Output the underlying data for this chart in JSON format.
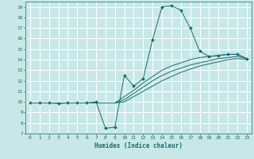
{
  "xlabel": "Humidex (Indice chaleur)",
  "bg_color": "#c8e8e8",
  "grid_color": "#a0d0d0",
  "line_color": "#1a6b6b",
  "xlim": [
    -0.5,
    23.5
  ],
  "ylim": [
    7,
    19.5
  ],
  "xticks": [
    0,
    1,
    2,
    3,
    4,
    5,
    6,
    7,
    8,
    9,
    10,
    11,
    12,
    13,
    14,
    15,
    16,
    17,
    18,
    19,
    20,
    21,
    22,
    23
  ],
  "yticks": [
    7,
    8,
    9,
    10,
    11,
    12,
    13,
    14,
    15,
    16,
    17,
    18,
    19
  ],
  "series": [
    {
      "x": [
        0,
        1,
        2,
        3,
        4,
        5,
        6,
        7,
        8,
        9,
        10,
        11,
        12,
        13,
        14,
        15,
        16,
        17,
        18,
        19,
        20,
        21,
        22,
        23
      ],
      "y": [
        9.9,
        9.9,
        9.9,
        9.85,
        9.9,
        9.9,
        9.9,
        10.0,
        7.5,
        7.6,
        12.5,
        11.5,
        12.2,
        15.9,
        19.0,
        19.1,
        18.7,
        17.0,
        14.8,
        14.3,
        14.4,
        14.5,
        14.5,
        14.1
      ],
      "marker": "D",
      "markersize": 2.0
    },
    {
      "x": [
        0,
        1,
        2,
        3,
        4,
        5,
        6,
        7,
        8,
        9,
        10,
        11,
        12,
        13,
        14,
        15,
        16,
        17,
        18,
        19,
        20,
        21,
        22,
        23
      ],
      "y": [
        9.9,
        9.9,
        9.9,
        9.9,
        9.9,
        9.9,
        9.9,
        9.9,
        9.9,
        9.9,
        10.0,
        10.5,
        11.0,
        11.5,
        12.0,
        12.4,
        12.8,
        13.1,
        13.4,
        13.6,
        13.8,
        14.0,
        14.1,
        14.0
      ],
      "marker": null,
      "markersize": 0
    },
    {
      "x": [
        0,
        1,
        2,
        3,
        4,
        5,
        6,
        7,
        8,
        9,
        10,
        11,
        12,
        13,
        14,
        15,
        16,
        17,
        18,
        19,
        20,
        21,
        22,
        23
      ],
      "y": [
        9.9,
        9.9,
        9.9,
        9.9,
        9.9,
        9.9,
        9.9,
        9.9,
        9.9,
        9.9,
        10.2,
        10.8,
        11.4,
        12.0,
        12.5,
        12.9,
        13.2,
        13.5,
        13.7,
        13.9,
        14.1,
        14.2,
        14.3,
        14.1
      ],
      "marker": null,
      "markersize": 0
    },
    {
      "x": [
        0,
        1,
        2,
        3,
        4,
        5,
        6,
        7,
        8,
        9,
        10,
        11,
        12,
        13,
        14,
        15,
        16,
        17,
        18,
        19,
        20,
        21,
        22,
        23
      ],
      "y": [
        9.9,
        9.9,
        9.9,
        9.9,
        9.9,
        9.9,
        9.9,
        9.9,
        9.9,
        9.9,
        10.5,
        11.1,
        11.8,
        12.4,
        13.0,
        13.4,
        13.7,
        14.0,
        14.2,
        14.3,
        14.4,
        14.5,
        14.5,
        14.1
      ],
      "marker": null,
      "markersize": 0
    }
  ]
}
